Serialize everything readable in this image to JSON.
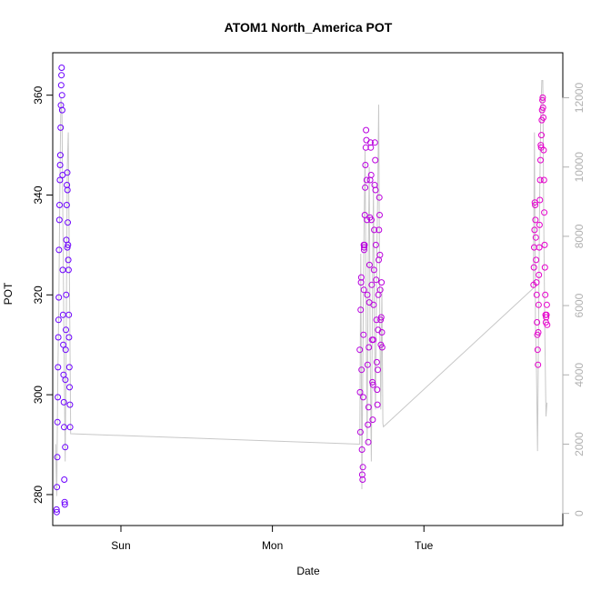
{
  "chart_data": {
    "type": "scatter",
    "title": "ATOM1 North_America POT",
    "xlabel": "Date",
    "ylabel": "POT",
    "x_ticks": [
      "Sun",
      "Mon",
      "Tue"
    ],
    "y_ticks": [
      280,
      300,
      320,
      340,
      360
    ],
    "y2_ticks": [
      0,
      2000,
      4000,
      6000,
      8000,
      10000,
      12000
    ],
    "xlim": [
      "Sat 13:12",
      "Tue 22:00"
    ],
    "ylim": [
      273.8,
      368.5
    ],
    "y2lim": [
      -350,
      13300
    ],
    "grid": false,
    "legend": "none",
    "colors": {
      "early_points": "#6a00ff",
      "late_points": "#e600cc",
      "right_axis_line": "#c8c8c8",
      "axis": "#000000",
      "right_axis_text": "#b0b0b0"
    },
    "series": [
      {
        "name": "",
        "kind": "points",
        "axis": "left",
        "points": [
          [
            "Sat 13:48",
            277
          ],
          [
            "Sat 13:50",
            276.5
          ],
          [
            "Sat 13:52",
            281.5
          ],
          [
            "Sat 13:55",
            287.5
          ],
          [
            "Sat 13:57",
            294.5
          ],
          [
            "Sat 14:00",
            299.5
          ],
          [
            "Sat 14:02",
            305.5
          ],
          [
            "Sat 14:05",
            311.5
          ],
          [
            "Sat 14:07",
            315
          ],
          [
            "Sat 14:10",
            319.5
          ],
          [
            "Sat 14:12",
            329
          ],
          [
            "Sat 14:15",
            335
          ],
          [
            "Sat 14:17",
            338
          ],
          [
            "Sat 14:20",
            343
          ],
          [
            "Sat 14:22",
            346
          ],
          [
            "Sat 14:25",
            348
          ],
          [
            "Sat 14:27",
            353.5
          ],
          [
            "Sat 14:30",
            358
          ],
          [
            "Sat 14:32",
            362
          ],
          [
            "Sat 14:35",
            364
          ],
          [
            "Sat 14:37",
            365.5
          ],
          [
            "Sat 14:40",
            360
          ],
          [
            "Sat 14:42",
            357
          ],
          [
            "Sat 14:45",
            344
          ],
          [
            "Sat 14:47",
            325
          ],
          [
            "Sat 14:50",
            316
          ],
          [
            "Sat 14:52",
            310
          ],
          [
            "Sat 14:55",
            304
          ],
          [
            "Sat 14:57",
            298.5
          ],
          [
            "Sat 15:00",
            293.5
          ],
          [
            "Sat 15:02",
            283
          ],
          [
            "Sat 15:05",
            278.5
          ],
          [
            "Sat 15:07",
            278
          ],
          [
            "Sat 15:10",
            289.5
          ],
          [
            "Sat 15:12",
            303
          ],
          [
            "Sat 15:15",
            309
          ],
          [
            "Sat 15:17",
            313
          ],
          [
            "Sat 15:20",
            320
          ],
          [
            "Sat 15:22",
            331
          ],
          [
            "Sat 15:25",
            338
          ],
          [
            "Sat 15:27",
            342
          ],
          [
            "Sat 15:30",
            344.5
          ],
          [
            "Sat 15:32",
            341
          ],
          [
            "Sat 15:35",
            334.5
          ],
          [
            "Sat 15:37",
            330
          ],
          [
            "Sat 15:40",
            327
          ],
          [
            "Sat 15:42",
            325
          ],
          [
            "Sat 15:45",
            316
          ],
          [
            "Sat 15:47",
            311.5
          ],
          [
            "Sat 15:50",
            305.5
          ],
          [
            "Sat 15:52",
            301.5
          ],
          [
            "Sat 15:55",
            298
          ],
          [
            "Sat 15:57",
            293.5
          ],
          [
            "Sat 15:31",
            329.5
          ],
          [
            "Mon 13:50",
            309
          ],
          [
            "Mon 13:53",
            300.5
          ],
          [
            "Mon 13:56",
            292.5
          ],
          [
            "Mon 13:59",
            317
          ],
          [
            "Mon 14:02",
            322.5
          ],
          [
            "Mon 14:05",
            323.5
          ],
          [
            "Mon 14:08",
            305
          ],
          [
            "Mon 14:11",
            289
          ],
          [
            "Mon 14:14",
            284
          ],
          [
            "Mon 14:17",
            283
          ],
          [
            "Mon 14:20",
            285.5
          ],
          [
            "Mon 14:23",
            299.5
          ],
          [
            "Mon 14:26",
            312
          ],
          [
            "Mon 14:29",
            321
          ],
          [
            "Mon 14:32",
            329.5
          ],
          [
            "Mon 14:35",
            330
          ],
          [
            "Mon 14:38",
            336
          ],
          [
            "Mon 14:41",
            341.5
          ],
          [
            "Mon 14:44",
            346
          ],
          [
            "Mon 14:47",
            349.5
          ],
          [
            "Mon 14:50",
            353
          ],
          [
            "Mon 14:53",
            351
          ],
          [
            "Mon 14:56",
            343
          ],
          [
            "Mon 14:59",
            335
          ],
          [
            "Mon 15:02",
            320
          ],
          [
            "Mon 15:05",
            306
          ],
          [
            "Mon 15:08",
            294
          ],
          [
            "Mon 15:11",
            290.5
          ],
          [
            "Mon 15:14",
            297.5
          ],
          [
            "Mon 15:17",
            309.5
          ],
          [
            "Mon 15:20",
            318.5
          ],
          [
            "Mon 15:23",
            326
          ],
          [
            "Mon 15:26",
            335.5
          ],
          [
            "Mon 15:29",
            343
          ],
          [
            "Mon 15:32",
            350.5
          ],
          [
            "Mon 15:35",
            349.5
          ],
          [
            "Mon 15:38",
            344
          ],
          [
            "Mon 15:41",
            335
          ],
          [
            "Mon 15:44",
            322
          ],
          [
            "Mon 15:47",
            311
          ],
          [
            "Mon 15:50",
            302.5
          ],
          [
            "Mon 15:53",
            295
          ],
          [
            "Mon 15:56",
            302
          ],
          [
            "Mon 15:59",
            311
          ],
          [
            "Mon 16:02",
            318
          ],
          [
            "Mon 16:05",
            325
          ],
          [
            "Mon 16:08",
            333
          ],
          [
            "Mon 16:11",
            342
          ],
          [
            "Mon 16:14",
            350.5
          ],
          [
            "Mon 16:17",
            347
          ],
          [
            "Mon 16:20",
            341
          ],
          [
            "Mon 16:23",
            330
          ],
          [
            "Mon 16:26",
            323
          ],
          [
            "Mon 16:29",
            315
          ],
          [
            "Mon 16:32",
            306.5
          ],
          [
            "Mon 16:35",
            301
          ],
          [
            "Mon 16:38",
            298
          ],
          [
            "Mon 16:41",
            305
          ],
          [
            "Mon 16:44",
            313
          ],
          [
            "Mon 16:47",
            320
          ],
          [
            "Mon 16:50",
            327
          ],
          [
            "Mon 16:53",
            333
          ],
          [
            "Mon 16:56",
            339.5
          ],
          [
            "Mon 16:59",
            336
          ],
          [
            "Mon 17:02",
            328
          ],
          [
            "Mon 17:05",
            321
          ],
          [
            "Mon 17:08",
            315
          ],
          [
            "Mon 17:11",
            310
          ],
          [
            "Mon 17:14",
            315.5
          ],
          [
            "Mon 17:17",
            322.5
          ],
          [
            "Mon 17:20",
            312.5
          ],
          [
            "Mon 17:23",
            309.5
          ],
          [
            "Mon 14:28",
            330
          ],
          [
            "Mon 14:31",
            329
          ],
          [
            "Tue 17:22",
            322
          ],
          [
            "Tue 17:25",
            325.5
          ],
          [
            "Tue 17:28",
            329.5
          ],
          [
            "Tue 17:31",
            333
          ],
          [
            "Tue 17:34",
            338.5
          ],
          [
            "Tue 17:37",
            338
          ],
          [
            "Tue 17:40",
            335
          ],
          [
            "Tue 17:43",
            331.5
          ],
          [
            "Tue 17:46",
            327
          ],
          [
            "Tue 17:49",
            322.5
          ],
          [
            "Tue 17:52",
            320
          ],
          [
            "Tue 17:55",
            314.5
          ],
          [
            "Tue 17:58",
            312
          ],
          [
            "Tue 18:01",
            309
          ],
          [
            "Tue 18:04",
            306
          ],
          [
            "Tue 18:07",
            312.5
          ],
          [
            "Tue 18:10",
            318
          ],
          [
            "Tue 18:13",
            324
          ],
          [
            "Tue 18:16",
            329.5
          ],
          [
            "Tue 18:19",
            334
          ],
          [
            "Tue 18:22",
            339
          ],
          [
            "Tue 18:25",
            343
          ],
          [
            "Tue 18:28",
            347
          ],
          [
            "Tue 18:31",
            350
          ],
          [
            "Tue 18:34",
            349.5
          ],
          [
            "Tue 18:37",
            352
          ],
          [
            "Tue 18:40",
            355
          ],
          [
            "Tue 18:43",
            357
          ],
          [
            "Tue 18:46",
            359
          ],
          [
            "Tue 18:49",
            359.5
          ],
          [
            "Tue 18:52",
            357.5
          ],
          [
            "Tue 18:55",
            355.5
          ],
          [
            "Tue 18:58",
            349
          ],
          [
            "Tue 19:01",
            343
          ],
          [
            "Tue 19:04",
            336.5
          ],
          [
            "Tue 19:07",
            330
          ],
          [
            "Tue 19:10",
            325.5
          ],
          [
            "Tue 19:13",
            320
          ],
          [
            "Tue 19:16",
            316
          ],
          [
            "Tue 19:19",
            314.5
          ],
          [
            "Tue 19:22",
            315.5
          ],
          [
            "Tue 19:25",
            316
          ],
          [
            "Tue 19:28",
            318
          ],
          [
            "Tue 19:31",
            314
          ]
        ]
      },
      {
        "name": "",
        "kind": "line",
        "axis": "right",
        "points": [
          [
            "Sat 13:40",
            2000
          ],
          [
            "Sat 13:50",
            500
          ],
          [
            "Sat 14:00",
            4000
          ],
          [
            "Sat 14:10",
            6000
          ],
          [
            "Sat 14:20",
            9500
          ],
          [
            "Sat 14:30",
            12000
          ],
          [
            "Sat 14:40",
            11500
          ],
          [
            "Sat 14:50",
            8000
          ],
          [
            "Sat 15:00",
            4500
          ],
          [
            "Sat 15:10",
            1500
          ],
          [
            "Sat 15:20",
            5000
          ],
          [
            "Sat 15:30",
            10000
          ],
          [
            "Sat 15:40",
            11000
          ],
          [
            "Sat 15:50",
            7000
          ],
          [
            "Sat 16:00",
            3500
          ],
          [
            "Sat 16:02",
            2300
          ],
          [
            "Mon 13:50",
            2000
          ],
          [
            "Mon 14:00",
            7500
          ],
          [
            "Mon 14:10",
            700
          ],
          [
            "Mon 14:20",
            4500
          ],
          [
            "Mon 14:30",
            8000
          ],
          [
            "Mon 14:40",
            10500
          ],
          [
            "Mon 14:50",
            6000
          ],
          [
            "Mon 15:00",
            2000
          ],
          [
            "Mon 15:10",
            7000
          ],
          [
            "Mon 15:20",
            10000
          ],
          [
            "Mon 15:30",
            4500
          ],
          [
            "Mon 15:40",
            1500
          ],
          [
            "Mon 15:50",
            6000
          ],
          [
            "Mon 16:00",
            9500
          ],
          [
            "Mon 16:10",
            5000
          ],
          [
            "Mon 16:20",
            3000
          ],
          [
            "Mon 16:30",
            7000
          ],
          [
            "Mon 16:40",
            9000
          ],
          [
            "Mon 16:50",
            11800
          ],
          [
            "Mon 17:00",
            5500
          ],
          [
            "Mon 17:10",
            3000
          ],
          [
            "Mon 17:20",
            6500
          ],
          [
            "Mon 17:30",
            2600
          ],
          [
            "Mon 17:35",
            2500
          ],
          [
            "Tue 17:20",
            6500
          ],
          [
            "Tue 17:30",
            11000
          ],
          [
            "Tue 17:40",
            5500
          ],
          [
            "Tue 17:50",
            4000
          ],
          [
            "Tue 18:00",
            1800
          ],
          [
            "Tue 18:10",
            5500
          ],
          [
            "Tue 18:20",
            9000
          ],
          [
            "Tue 18:30",
            11500
          ],
          [
            "Tue 18:40",
            12500
          ],
          [
            "Tue 18:50",
            12500
          ],
          [
            "Tue 19:00",
            8000
          ],
          [
            "Tue 19:10",
            5000
          ],
          [
            "Tue 19:20",
            2800
          ],
          [
            "Tue 19:30",
            3200
          ]
        ]
      }
    ]
  }
}
